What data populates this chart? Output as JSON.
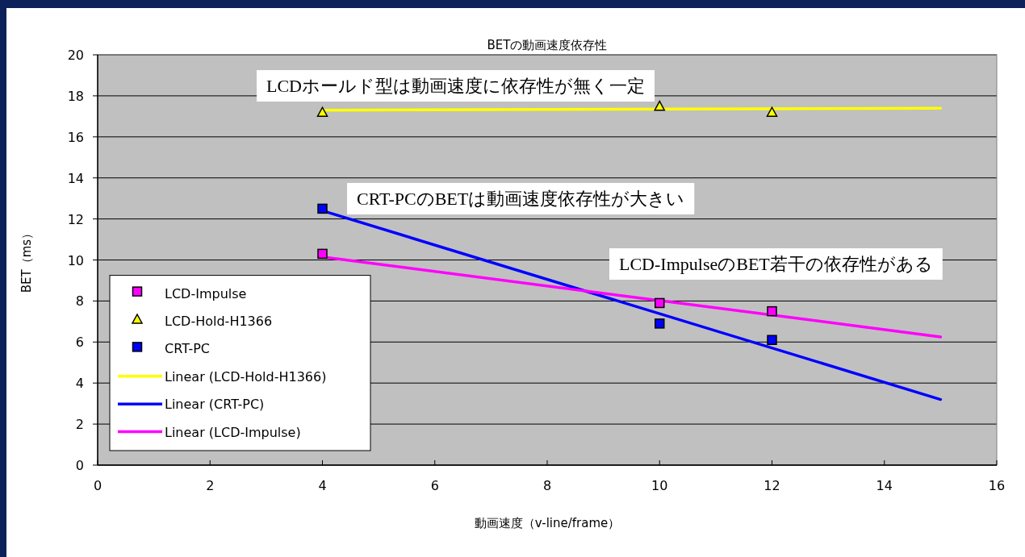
{
  "chart_data": {
    "type": "scatter",
    "title": "BETの動画速度依存性",
    "xlabel": "動画速度（v-line/frame）",
    "ylabel": "BET（ms）",
    "xlim": [
      0,
      16
    ],
    "xticks": [
      0,
      2,
      4,
      6,
      8,
      10,
      12,
      14,
      16
    ],
    "ylim": [
      0,
      20
    ],
    "yticks": [
      0,
      2,
      4,
      6,
      8,
      10,
      12,
      14,
      16,
      18,
      20
    ],
    "grid": "y",
    "legend": "bottom left",
    "series": [
      {
        "name": "LCD-Impulse",
        "type": "scatter",
        "marker": "square",
        "color": "#ff00ff",
        "x": [
          4,
          10,
          12
        ],
        "values": [
          10.3,
          7.9,
          7.5
        ]
      },
      {
        "name": "LCD-Hold-H1366",
        "type": "scatter",
        "marker": "triangle",
        "color": "#ffff00",
        "x": [
          4,
          10,
          12
        ],
        "values": [
          17.2,
          17.5,
          17.2
        ]
      },
      {
        "name": "CRT-PC",
        "type": "scatter",
        "marker": "square",
        "color": "#0000ff",
        "x": [
          4,
          10,
          12
        ],
        "values": [
          12.5,
          6.9,
          6.1
        ]
      },
      {
        "name": "Linear (LCD-Hold-H1366)",
        "type": "line",
        "color": "#ffff00",
        "x": [
          4,
          15
        ],
        "values": [
          17.3,
          17.4
        ]
      },
      {
        "name": "Linear (CRT-PC)",
        "type": "line",
        "color": "#0000ff",
        "x": [
          4,
          15
        ],
        "values": [
          12.4,
          3.2
        ]
      },
      {
        "name": "Linear (LCD-Impulse)",
        "type": "line",
        "color": "#ff00ff",
        "x": [
          4,
          15
        ],
        "values": [
          10.15,
          6.25
        ]
      }
    ],
    "annotations": [
      "LCDホールド型は動画速度に依存性が無く一定",
      "CRT-PCのBETは動画速度依存性が大きい",
      "LCD-ImpulseのBET若干の依存性がある"
    ]
  }
}
